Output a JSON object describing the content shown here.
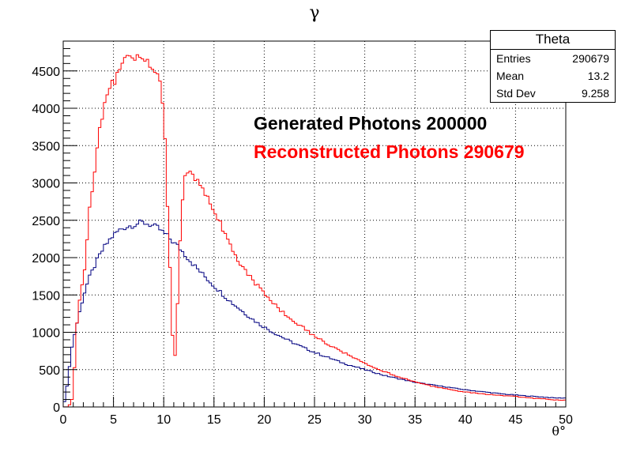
{
  "chart_data": {
    "type": "histogram",
    "title": "γ",
    "xlabel": "θ°",
    "ylabel": "",
    "xlim": [
      0,
      50
    ],
    "ylim": [
      0,
      4900
    ],
    "xticks": [
      0,
      5,
      10,
      15,
      20,
      25,
      30,
      35,
      40,
      45,
      50
    ],
    "yticks": [
      0,
      500,
      1000,
      1500,
      2000,
      2500,
      3000,
      3500,
      4000,
      4500
    ],
    "grid": true,
    "bin_width": 0.25,
    "series": [
      {
        "name": "Generated Photons 200000",
        "color": "#000080",
        "points": [
          [
            0,
            0
          ],
          [
            0.25,
            150
          ],
          [
            0.5,
            400
          ],
          [
            0.75,
            700
          ],
          [
            1,
            900
          ],
          [
            1.5,
            1200
          ],
          [
            2,
            1480
          ],
          [
            2.5,
            1700
          ],
          [
            3,
            1850
          ],
          [
            3.5,
            2000
          ],
          [
            4,
            2120
          ],
          [
            4.5,
            2220
          ],
          [
            5,
            2300
          ],
          [
            5.5,
            2360
          ],
          [
            6,
            2400
          ],
          [
            6.5,
            2420
          ],
          [
            7,
            2440
          ],
          [
            7.5,
            2460
          ],
          [
            8,
            2470
          ],
          [
            8.5,
            2450
          ],
          [
            9,
            2420
          ],
          [
            9.5,
            2390
          ],
          [
            10,
            2330
          ],
          [
            10.5,
            2270
          ],
          [
            11,
            2200
          ],
          [
            11.5,
            2140
          ],
          [
            12,
            2060
          ],
          [
            12.5,
            1980
          ],
          [
            13,
            1900
          ],
          [
            13.5,
            1830
          ],
          [
            14,
            1760
          ],
          [
            14.5,
            1690
          ],
          [
            15,
            1620
          ],
          [
            15.5,
            1560
          ],
          [
            16,
            1490
          ],
          [
            16.5,
            1430
          ],
          [
            17,
            1370
          ],
          [
            17.5,
            1320
          ],
          [
            18,
            1260
          ],
          [
            18.5,
            1210
          ],
          [
            19,
            1160
          ],
          [
            19.5,
            1110
          ],
          [
            20,
            1070
          ],
          [
            21,
            990
          ],
          [
            22,
            920
          ],
          [
            23,
            850
          ],
          [
            24,
            790
          ],
          [
            25,
            730
          ],
          [
            26,
            680
          ],
          [
            27,
            630
          ],
          [
            28,
            580
          ],
          [
            29,
            540
          ],
          [
            30,
            500
          ],
          [
            31,
            460
          ],
          [
            32,
            420
          ],
          [
            33,
            390
          ],
          [
            34,
            360
          ],
          [
            35,
            330
          ],
          [
            36,
            310
          ],
          [
            37,
            290
          ],
          [
            38,
            270
          ],
          [
            39,
            250
          ],
          [
            40,
            230
          ],
          [
            41,
            215
          ],
          [
            42,
            200
          ],
          [
            43,
            185
          ],
          [
            44,
            170
          ],
          [
            45,
            160
          ],
          [
            46,
            150
          ],
          [
            47,
            140
          ],
          [
            48,
            130
          ],
          [
            49,
            120
          ],
          [
            50,
            120
          ]
        ]
      },
      {
        "name": "Reconstructed Photons 290679",
        "color": "#ff0000",
        "points": [
          [
            0,
            0
          ],
          [
            0.5,
            0
          ],
          [
            0.75,
            50
          ],
          [
            1,
            150
          ],
          [
            1.25,
            900
          ],
          [
            1.5,
            1350
          ],
          [
            1.75,
            1550
          ],
          [
            2,
            1700
          ],
          [
            2.25,
            2000
          ],
          [
            2.5,
            2500
          ],
          [
            2.75,
            2800
          ],
          [
            3,
            3050
          ],
          [
            3.25,
            3300
          ],
          [
            3.5,
            3600
          ],
          [
            3.75,
            3800
          ],
          [
            4,
            3950
          ],
          [
            4.25,
            4100
          ],
          [
            4.5,
            4200
          ],
          [
            4.75,
            4300
          ],
          [
            5,
            4350
          ],
          [
            5.25,
            4400
          ],
          [
            5.5,
            4500
          ],
          [
            5.75,
            4600
          ],
          [
            6,
            4700
          ],
          [
            6.5,
            4700
          ],
          [
            7,
            4720
          ],
          [
            7.5,
            4720
          ],
          [
            8,
            4680
          ],
          [
            8.5,
            4600
          ],
          [
            9,
            4500
          ],
          [
            9.5,
            4480
          ],
          [
            10,
            4000
          ],
          [
            10.25,
            3200
          ],
          [
            10.5,
            2200
          ],
          [
            10.75,
            1500
          ],
          [
            11,
            400
          ],
          [
            11.25,
            1000
          ],
          [
            11.5,
            1800
          ],
          [
            11.75,
            2600
          ],
          [
            12,
            2950
          ],
          [
            12.25,
            3150
          ],
          [
            12.5,
            3200
          ],
          [
            13,
            3100
          ],
          [
            13.5,
            3000
          ],
          [
            14,
            2900
          ],
          [
            14.5,
            2800
          ],
          [
            15,
            2650
          ],
          [
            15.5,
            2500
          ],
          [
            16,
            2350
          ],
          [
            16.5,
            2200
          ],
          [
            17,
            2080
          ],
          [
            17.5,
            1950
          ],
          [
            18,
            1850
          ],
          [
            18.5,
            1750
          ],
          [
            19,
            1680
          ],
          [
            19.5,
            1600
          ],
          [
            20,
            1520
          ],
          [
            21,
            1380
          ],
          [
            22,
            1250
          ],
          [
            23,
            1150
          ],
          [
            24,
            1050
          ],
          [
            25,
            950
          ],
          [
            26,
            870
          ],
          [
            27,
            790
          ],
          [
            28,
            720
          ],
          [
            29,
            650
          ],
          [
            30,
            580
          ],
          [
            31,
            520
          ],
          [
            32,
            470
          ],
          [
            33,
            420
          ],
          [
            34,
            380
          ],
          [
            35,
            340
          ],
          [
            36,
            300
          ],
          [
            37,
            270
          ],
          [
            38,
            245
          ],
          [
            39,
            220
          ],
          [
            40,
            200
          ],
          [
            41,
            185
          ],
          [
            42,
            170
          ],
          [
            43,
            160
          ],
          [
            44,
            150
          ],
          [
            45,
            140
          ],
          [
            46,
            125
          ],
          [
            47,
            115
          ],
          [
            48,
            105
          ],
          [
            49,
            95
          ],
          [
            50,
            90
          ]
        ]
      }
    ],
    "annotations": [
      "Generated Photons 200000",
      "Reconstructed Photons 290679"
    ],
    "stats": {
      "title": "Theta",
      "entries_label": "Entries",
      "entries": "290679",
      "mean_label": "Mean",
      "mean": "13.2",
      "std_label": "Std Dev",
      "std": "9.258"
    }
  }
}
